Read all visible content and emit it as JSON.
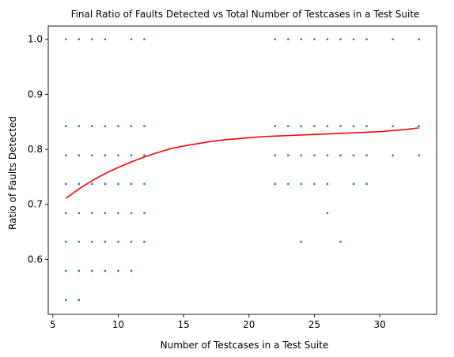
{
  "chart_data": {
    "type": "scatter",
    "title": "Final Ratio of Faults Detected vs Total Number of Testcases in a Test Suite",
    "xlabel": "Number of Testcases in a Test Suite",
    "ylabel": "Ratio of Faults Detected",
    "xlim": [
      4.65,
      34.35
    ],
    "ylim": [
      0.5,
      1.024
    ],
    "x_ticks": [
      5,
      10,
      15,
      20,
      25,
      30
    ],
    "y_ticks": [
      0.6,
      0.7,
      0.8,
      0.9,
      1.0
    ],
    "x_tick_labels": [
      "5",
      "10",
      "15",
      "20",
      "25",
      "30"
    ],
    "y_tick_labels": [
      "0.6",
      "0.7",
      "0.8",
      "0.9",
      "1.0"
    ],
    "grid": false,
    "series": [
      {
        "kind": "points",
        "color": "#1f77b4",
        "points": [
          [
            6,
            1.0
          ],
          [
            7,
            1.0
          ],
          [
            8,
            1.0
          ],
          [
            9,
            1.0
          ],
          [
            11,
            1.0
          ],
          [
            12,
            1.0
          ],
          [
            22,
            1.0
          ],
          [
            23,
            1.0
          ],
          [
            24,
            1.0
          ],
          [
            25,
            1.0
          ],
          [
            26,
            1.0
          ],
          [
            27,
            1.0
          ],
          [
            28,
            1.0
          ],
          [
            29,
            1.0
          ],
          [
            31,
            1.0
          ],
          [
            33,
            1.0
          ],
          [
            6,
            0.842
          ],
          [
            7,
            0.842
          ],
          [
            8,
            0.842
          ],
          [
            9,
            0.842
          ],
          [
            10,
            0.842
          ],
          [
            11,
            0.842
          ],
          [
            12,
            0.842
          ],
          [
            22,
            0.842
          ],
          [
            23,
            0.842
          ],
          [
            24,
            0.842
          ],
          [
            25,
            0.842
          ],
          [
            26,
            0.842
          ],
          [
            27,
            0.842
          ],
          [
            28,
            0.842
          ],
          [
            29,
            0.842
          ],
          [
            31,
            0.842
          ],
          [
            33,
            0.842
          ],
          [
            6,
            0.789
          ],
          [
            7,
            0.789
          ],
          [
            8,
            0.789
          ],
          [
            9,
            0.789
          ],
          [
            10,
            0.789
          ],
          [
            11,
            0.789
          ],
          [
            12,
            0.789
          ],
          [
            22,
            0.789
          ],
          [
            23,
            0.789
          ],
          [
            24,
            0.789
          ],
          [
            25,
            0.789
          ],
          [
            26,
            0.789
          ],
          [
            27,
            0.789
          ],
          [
            28,
            0.789
          ],
          [
            29,
            0.789
          ],
          [
            31,
            0.789
          ],
          [
            33,
            0.789
          ],
          [
            6,
            0.737
          ],
          [
            7,
            0.737
          ],
          [
            8,
            0.737
          ],
          [
            9,
            0.737
          ],
          [
            10,
            0.737
          ],
          [
            11,
            0.737
          ],
          [
            12,
            0.737
          ],
          [
            22,
            0.737
          ],
          [
            23,
            0.737
          ],
          [
            24,
            0.737
          ],
          [
            25,
            0.737
          ],
          [
            26,
            0.737
          ],
          [
            28,
            0.737
          ],
          [
            29,
            0.737
          ],
          [
            6,
            0.684
          ],
          [
            7,
            0.684
          ],
          [
            8,
            0.684
          ],
          [
            9,
            0.684
          ],
          [
            10,
            0.684
          ],
          [
            11,
            0.684
          ],
          [
            12,
            0.684
          ],
          [
            26,
            0.684
          ],
          [
            6,
            0.632
          ],
          [
            7,
            0.632
          ],
          [
            8,
            0.632
          ],
          [
            9,
            0.632
          ],
          [
            10,
            0.632
          ],
          [
            11,
            0.632
          ],
          [
            12,
            0.632
          ],
          [
            24,
            0.632
          ],
          [
            27,
            0.632
          ],
          [
            6,
            0.579
          ],
          [
            7,
            0.579
          ],
          [
            8,
            0.579
          ],
          [
            9,
            0.579
          ],
          [
            10,
            0.579
          ],
          [
            11,
            0.579
          ],
          [
            6,
            0.526
          ],
          [
            7,
            0.526
          ]
        ]
      },
      {
        "kind": "curve",
        "color": "#ff0000",
        "x": [
          6,
          7,
          8,
          9,
          10,
          11,
          12,
          13,
          14,
          15,
          16,
          17,
          18,
          19,
          20,
          21,
          22,
          23,
          24,
          25,
          26,
          27,
          28,
          29,
          30,
          31,
          32,
          33
        ],
        "y": [
          0.711,
          0.728,
          0.743,
          0.756,
          0.767,
          0.777,
          0.786,
          0.794,
          0.801,
          0.806,
          0.81,
          0.814,
          0.817,
          0.819,
          0.821,
          0.823,
          0.824,
          0.825,
          0.826,
          0.827,
          0.828,
          0.829,
          0.83,
          0.831,
          0.832,
          0.834,
          0.836,
          0.839
        ]
      }
    ]
  }
}
